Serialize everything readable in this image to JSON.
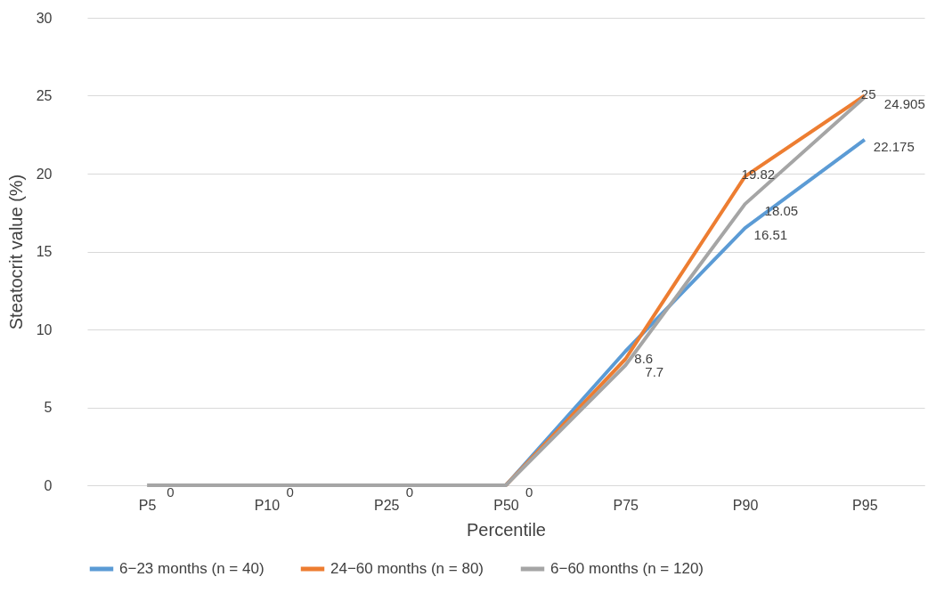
{
  "chart_data": {
    "type": "line",
    "xlabel": "Percentile",
    "ylabel": "Steatocrit value (%)",
    "categories": [
      "P5",
      "P10",
      "P25",
      "P50",
      "P75",
      "P90",
      "P95"
    ],
    "ylim": [
      0,
      30
    ],
    "yticks": [
      0,
      5,
      10,
      15,
      20,
      25,
      30
    ],
    "grid": "y",
    "legend": "bottom",
    "marker": "none",
    "series": [
      {
        "name": "6−23 months (n = 40)",
        "color": "#5b9bd5",
        "values": [
          null,
          null,
          null,
          0,
          8.6,
          16.51,
          22.175
        ],
        "value_labels": [
          null,
          null,
          null,
          null,
          "8.6",
          "16.51",
          "22.175"
        ]
      },
      {
        "name": "24−60 months (n = 80)",
        "color": "#ed7d31",
        "values": [
          null,
          null,
          null,
          0,
          8.1,
          19.82,
          25
        ],
        "value_labels": [
          null,
          null,
          null,
          null,
          null,
          "19.82",
          "25"
        ]
      },
      {
        "name": "6−60 months (n = 120)",
        "color": "#a5a5a5",
        "values": [
          0,
          0,
          0,
          0,
          7.7,
          18.05,
          24.905
        ],
        "value_labels": [
          "0",
          "0",
          "0",
          "0",
          "7.7",
          "18.05",
          "24.905"
        ]
      }
    ]
  }
}
